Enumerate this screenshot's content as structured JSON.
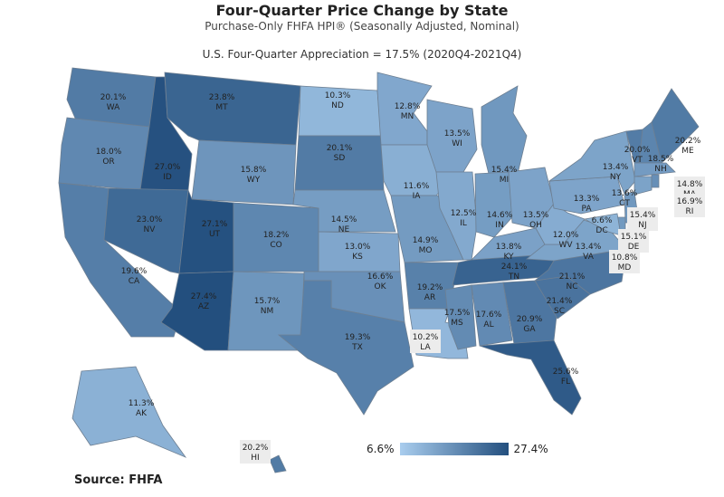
{
  "header": {
    "title": "Four-Quarter Price Change by State",
    "subtitle": "Purchase-Only FHFA HPI® (Seasonally Adjusted, Nominal)",
    "summary": "U.S. Four-Quarter Appreciation = 17.5% (2020Q4-2021Q4)"
  },
  "legend": {
    "min_label": "6.6%",
    "max_label": "27.4%",
    "min": 6.6,
    "max": 27.4,
    "color_low": "#a9cdee",
    "color_high": "#234f7e"
  },
  "source": "Source:  FHFA",
  "states": [
    {
      "abbr": "WA",
      "value": 20.1,
      "label": "20.1%"
    },
    {
      "abbr": "OR",
      "value": 18.0,
      "label": "18.0%"
    },
    {
      "abbr": "CA",
      "value": 19.6,
      "label": "19.6%"
    },
    {
      "abbr": "ID",
      "value": 27.0,
      "label": "27.0%"
    },
    {
      "abbr": "NV",
      "value": 23.0,
      "label": "23.0%"
    },
    {
      "abbr": "MT",
      "value": 23.8,
      "label": "23.8%"
    },
    {
      "abbr": "WY",
      "value": 15.8,
      "label": "15.8%"
    },
    {
      "abbr": "UT",
      "value": 27.1,
      "label": "27.1%"
    },
    {
      "abbr": "AZ",
      "value": 27.4,
      "label": "27.4%"
    },
    {
      "abbr": "CO",
      "value": 18.2,
      "label": "18.2%"
    },
    {
      "abbr": "NM",
      "value": 15.7,
      "label": "15.7%"
    },
    {
      "abbr": "ND",
      "value": 10.3,
      "label": "10.3%"
    },
    {
      "abbr": "SD",
      "value": 20.1,
      "label": "20.1%"
    },
    {
      "abbr": "NE",
      "value": 14.5,
      "label": "14.5%"
    },
    {
      "abbr": "KS",
      "value": 13.0,
      "label": "13.0%"
    },
    {
      "abbr": "OK",
      "value": 16.6,
      "label": "16.6%"
    },
    {
      "abbr": "TX",
      "value": 19.3,
      "label": "19.3%"
    },
    {
      "abbr": "MN",
      "value": 12.8,
      "label": "12.8%"
    },
    {
      "abbr": "IA",
      "value": 11.6,
      "label": "11.6%"
    },
    {
      "abbr": "MO",
      "value": 14.9,
      "label": "14.9%"
    },
    {
      "abbr": "AR",
      "value": 19.2,
      "label": "19.2%"
    },
    {
      "abbr": "LA",
      "value": 10.2,
      "label": "10.2%"
    },
    {
      "abbr": "WI",
      "value": 13.5,
      "label": "13.5%"
    },
    {
      "abbr": "IL",
      "value": 12.5,
      "label": "12.5%"
    },
    {
      "abbr": "MI",
      "value": 15.4,
      "label": "15.4%"
    },
    {
      "abbr": "IN",
      "value": 14.6,
      "label": "14.6%"
    },
    {
      "abbr": "OH",
      "value": 13.5,
      "label": "13.5%"
    },
    {
      "abbr": "KY",
      "value": 13.8,
      "label": "13.8%"
    },
    {
      "abbr": "TN",
      "value": 24.1,
      "label": "24.1%"
    },
    {
      "abbr": "MS",
      "value": 17.5,
      "label": "17.5%"
    },
    {
      "abbr": "AL",
      "value": 17.6,
      "label": "17.6%"
    },
    {
      "abbr": "GA",
      "value": 20.9,
      "label": "20.9%"
    },
    {
      "abbr": "FL",
      "value": 25.6,
      "label": "25.6%"
    },
    {
      "abbr": "SC",
      "value": 21.4,
      "label": "21.4%"
    },
    {
      "abbr": "NC",
      "value": 21.1,
      "label": "21.1%"
    },
    {
      "abbr": "VA",
      "value": 13.4,
      "label": "13.4%"
    },
    {
      "abbr": "WV",
      "value": 12.0,
      "label": "12.0%"
    },
    {
      "abbr": "DC",
      "value": 6.6,
      "label": "6.6%"
    },
    {
      "abbr": "PA",
      "value": 13.3,
      "label": "13.3%"
    },
    {
      "abbr": "NY",
      "value": 13.4,
      "label": "13.4%"
    },
    {
      "abbr": "VT",
      "value": 20.0,
      "label": "20.0%"
    },
    {
      "abbr": "NH",
      "value": 18.5,
      "label": "18.5%"
    },
    {
      "abbr": "ME",
      "value": 20.2,
      "label": "20.2%"
    },
    {
      "abbr": "MA",
      "value": 14.8,
      "label": "14.8%"
    },
    {
      "abbr": "CT",
      "value": 13.6,
      "label": "13.6%"
    },
    {
      "abbr": "RI",
      "value": 16.9,
      "label": "16.9%"
    },
    {
      "abbr": "NJ",
      "value": 15.4,
      "label": "15.4%"
    },
    {
      "abbr": "DE",
      "value": 15.1,
      "label": "15.1%"
    },
    {
      "abbr": "MD",
      "value": 10.8,
      "label": "10.8%"
    },
    {
      "abbr": "AK",
      "value": 11.3,
      "label": "11.3%"
    },
    {
      "abbr": "HI",
      "value": 20.2,
      "label": "20.2%"
    }
  ]
}
